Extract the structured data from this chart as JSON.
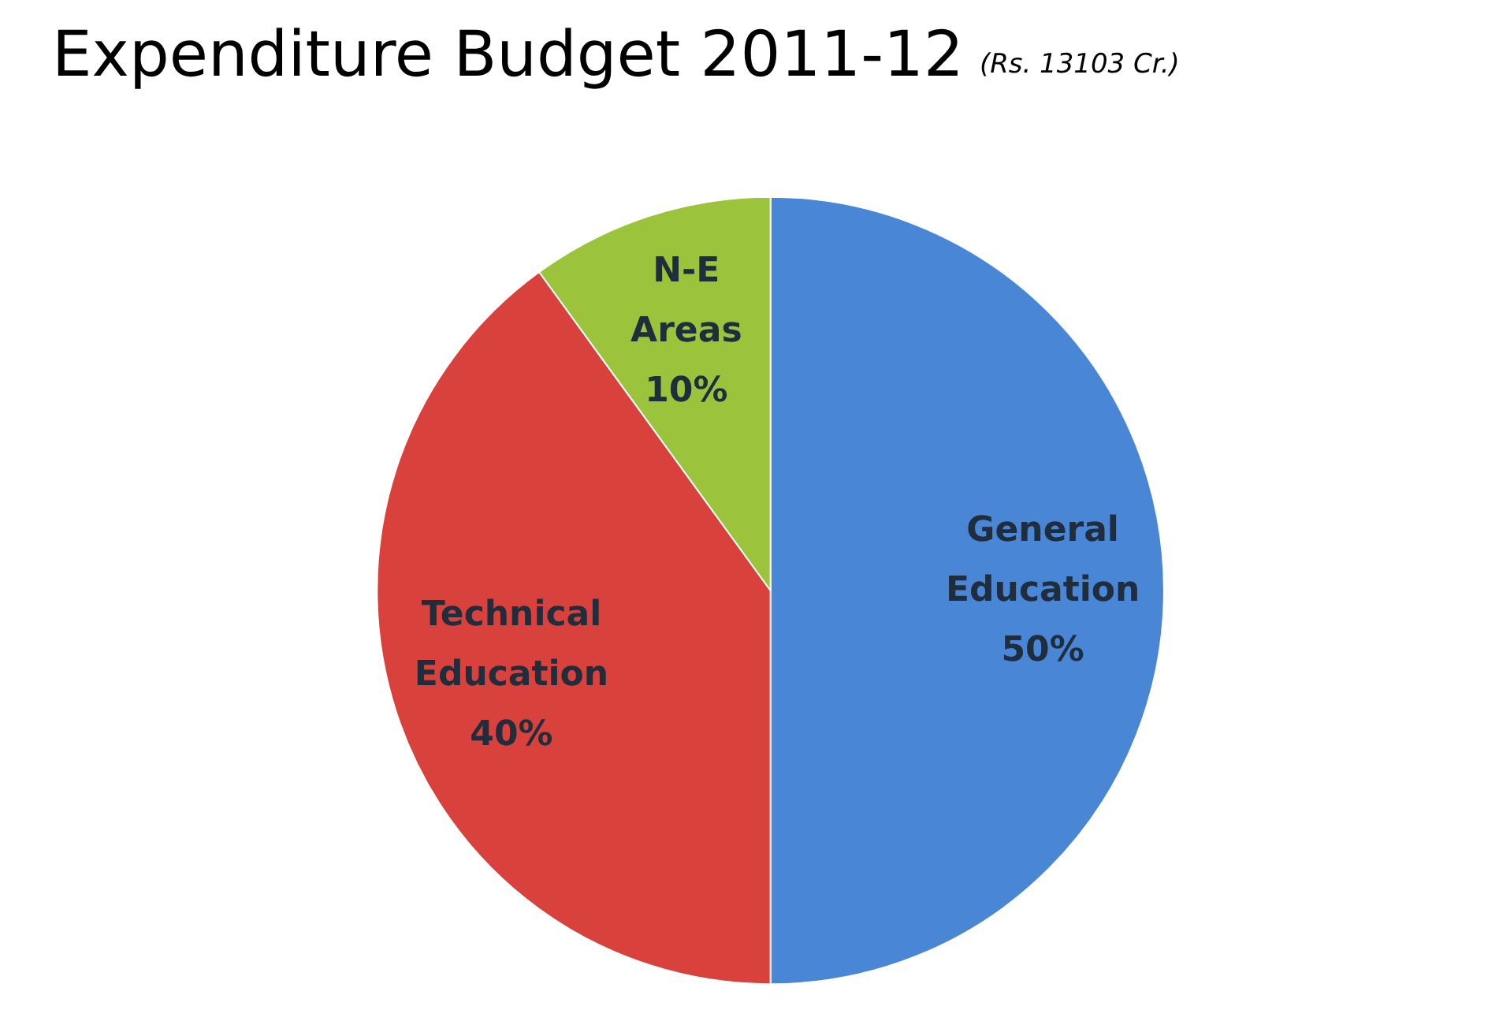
{
  "chart_data": {
    "type": "pie",
    "title": "Expenditure Budget 2011-12",
    "subtitle": "(Rs. 13103 Cr.)",
    "categories": [
      "General Education",
      "Technical Education",
      "N-E Areas"
    ],
    "values": [
      50,
      40,
      10
    ],
    "colors": [
      "#4a86d6",
      "#d9413c",
      "#9bc43c"
    ],
    "value_labels": [
      "50%",
      "40%",
      "10%"
    ],
    "legend": false
  }
}
